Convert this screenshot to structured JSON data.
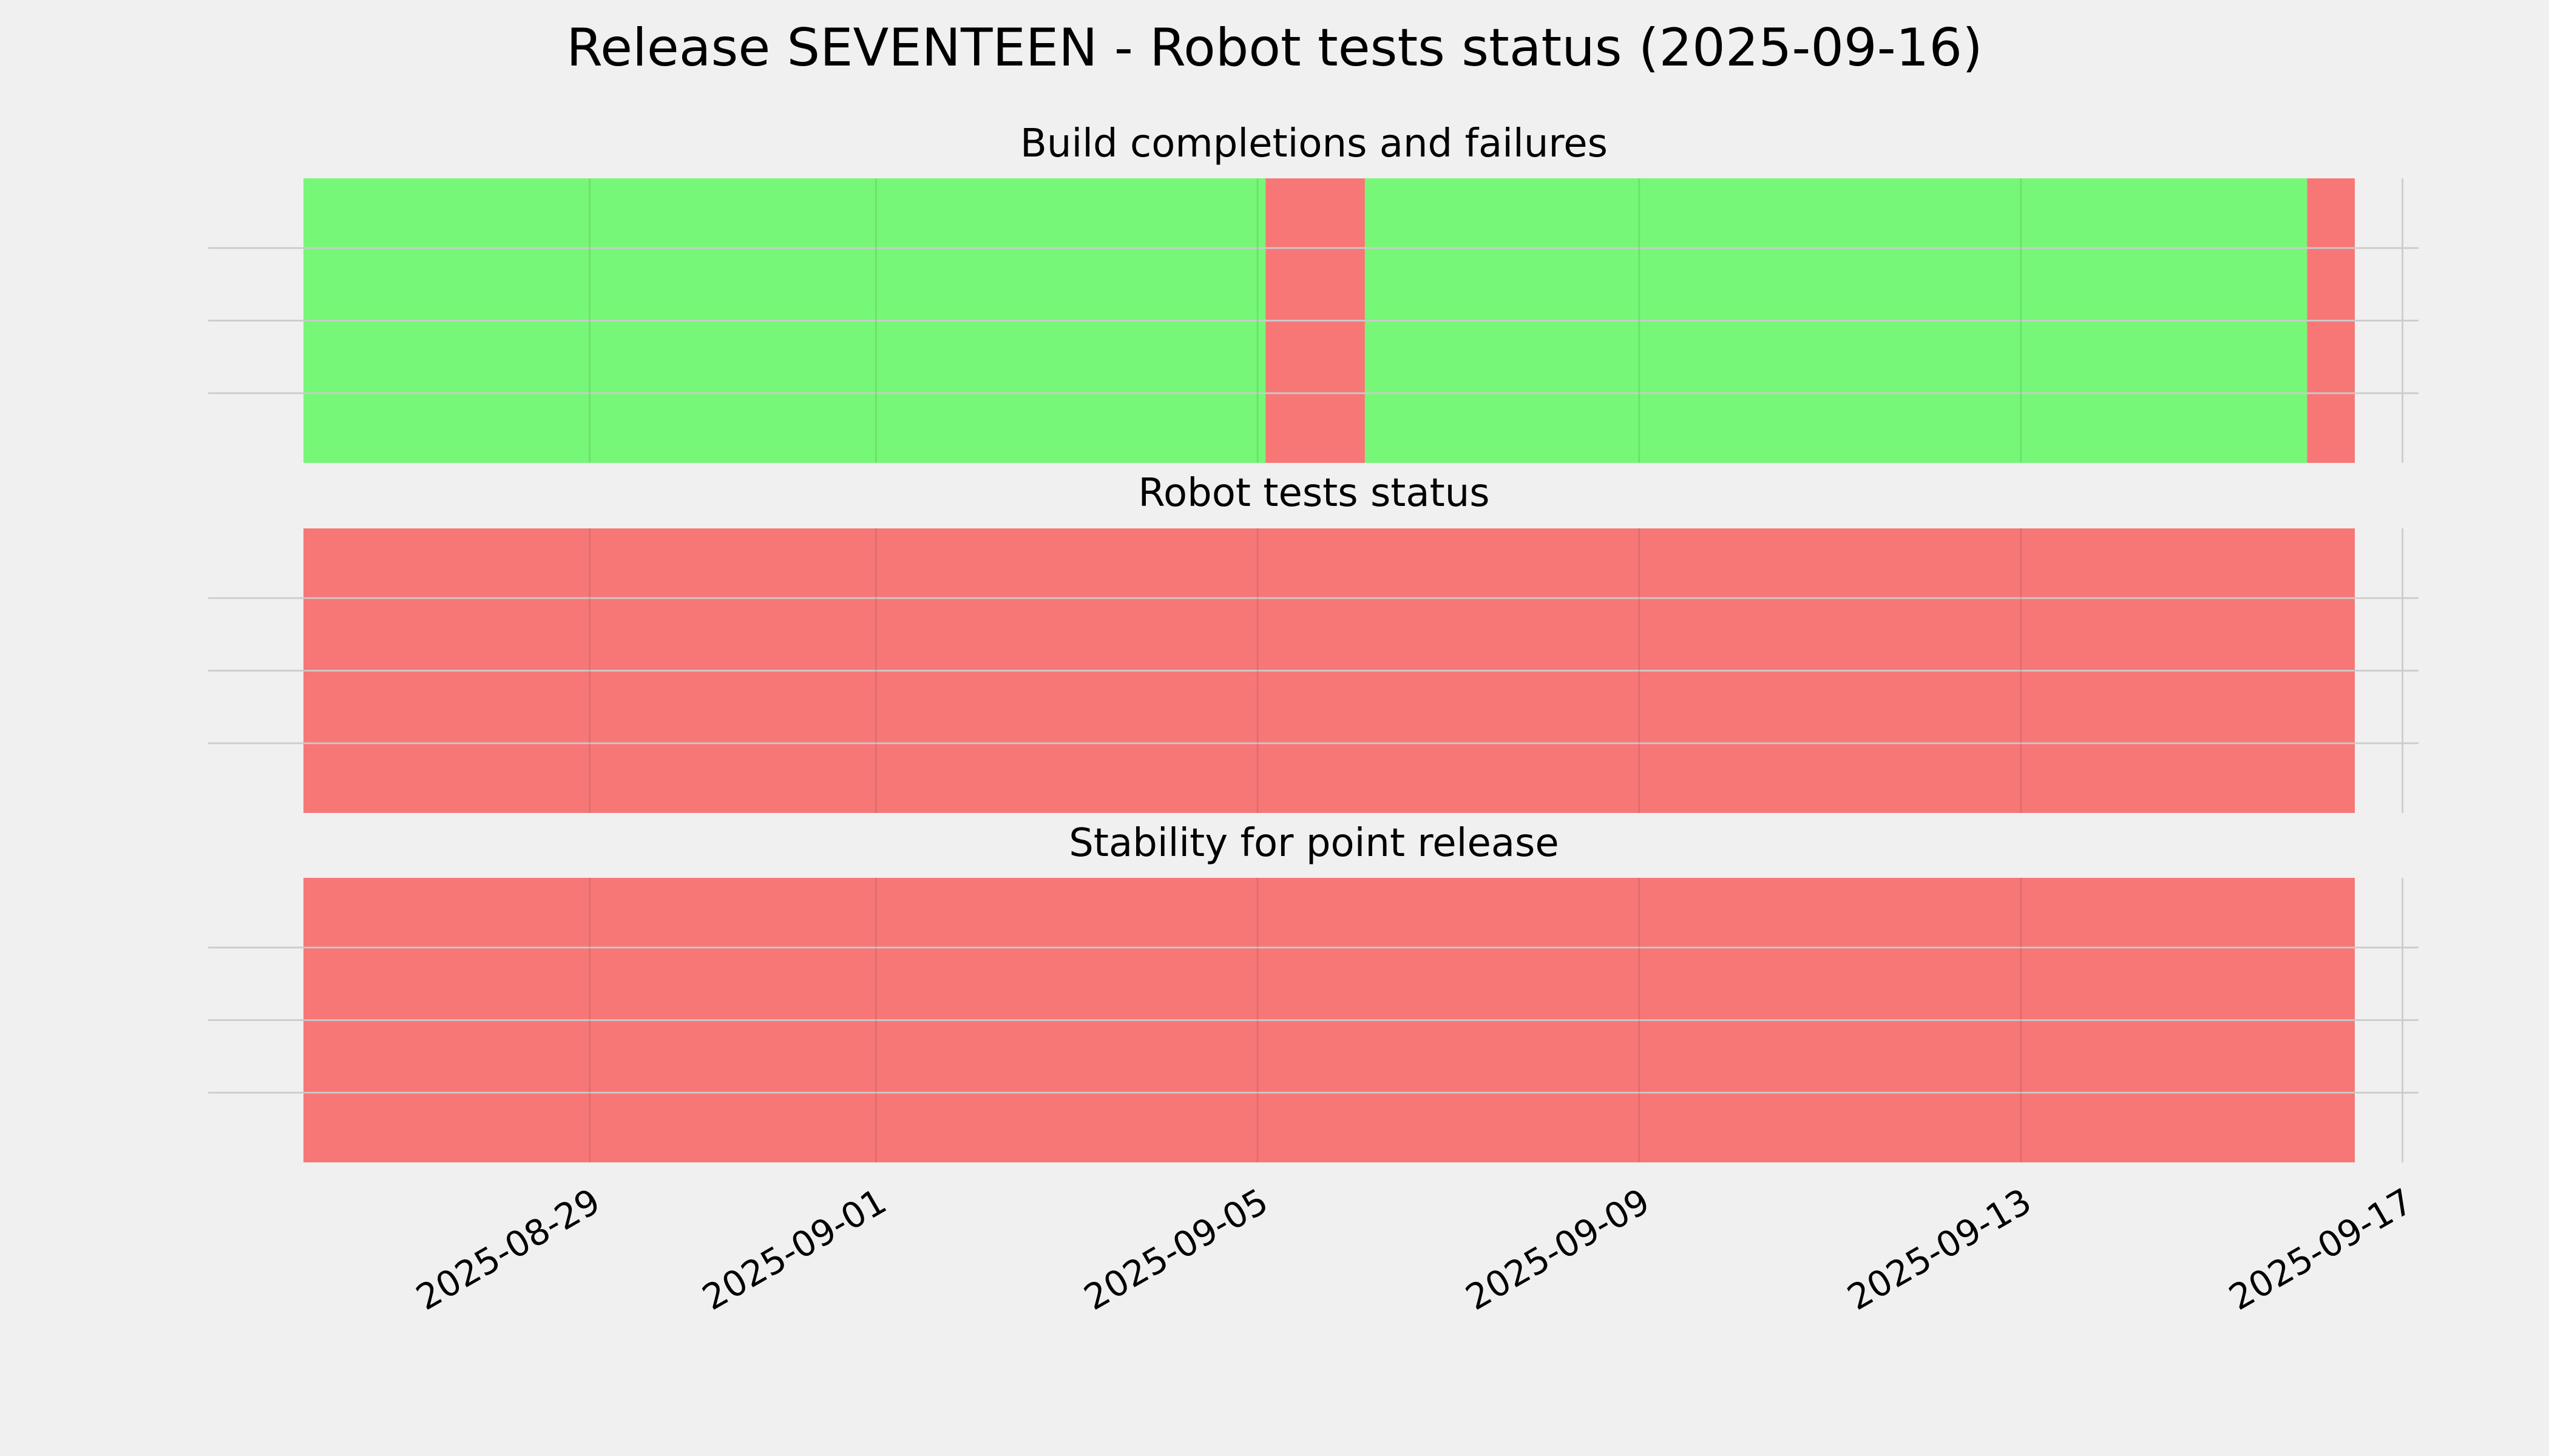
{
  "chart_data": {
    "type": "timeline",
    "title": "Release SEVENTEEN - Robot tests status (2025-09-16)",
    "xlim": [
      "2025-08-26",
      "2025-09-17T08:00"
    ],
    "data_end": "2025-09-16T12:00",
    "x_ticks": [
      "2025-08-29",
      "2025-09-01",
      "2025-09-05",
      "2025-09-09",
      "2025-09-13",
      "2025-09-17"
    ],
    "grid": true,
    "colors": {
      "pass": "#77f777",
      "fail": "#f77777"
    },
    "panels": [
      {
        "title": "Build completions and failures",
        "segments": [
          {
            "start": "2025-08-26",
            "end": "2025-09-05T02:00",
            "status": "pass"
          },
          {
            "start": "2025-09-05T02:00",
            "end": "2025-09-06T03:00",
            "status": "fail"
          },
          {
            "start": "2025-09-06T03:00",
            "end": "2025-09-16T00:00",
            "status": "pass"
          },
          {
            "start": "2025-09-16T00:00",
            "end": "2025-09-16T12:00",
            "status": "fail"
          }
        ]
      },
      {
        "title": "Robot tests status",
        "segments": [
          {
            "start": "2025-08-26",
            "end": "2025-09-16T12:00",
            "status": "fail"
          }
        ]
      },
      {
        "title": "Stability for point release",
        "segments": [
          {
            "start": "2025-08-26",
            "end": "2025-09-16T12:00",
            "status": "fail"
          }
        ]
      }
    ]
  }
}
